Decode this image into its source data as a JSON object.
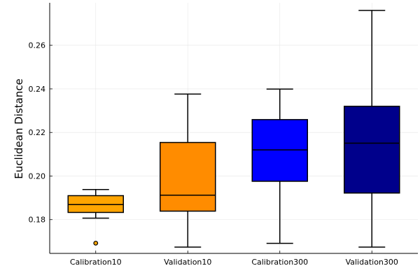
{
  "chart_data": {
    "type": "box",
    "ylabel": "Euclidean Distance",
    "xlabel": "",
    "title": "",
    "ylim": [
      0.1645,
      0.2795
    ],
    "y_ticks": [
      0.18,
      0.2,
      0.22,
      0.24,
      0.26
    ],
    "y_tick_labels": [
      "0.18",
      "0.20",
      "0.22",
      "0.24",
      "0.26"
    ],
    "grid": true,
    "legend": "none",
    "categories": [
      "Calibration10",
      "Validation10",
      "Calibration300",
      "Validation300"
    ],
    "boxes": [
      {
        "category": "Calibration10",
        "whisker_low": 0.1807,
        "q1": 0.1833,
        "median": 0.1869,
        "q3": 0.191,
        "whisker_high": 0.1938,
        "outliers": [
          0.1692
        ],
        "color": "#FFA500"
      },
      {
        "category": "Validation10",
        "whisker_low": 0.1674,
        "q1": 0.1839,
        "median": 0.1912,
        "q3": 0.2154,
        "whisker_high": 0.2376,
        "outliers": [],
        "color": "#FF8C00"
      },
      {
        "category": "Calibration300",
        "whisker_low": 0.1691,
        "q1": 0.1976,
        "median": 0.212,
        "q3": 0.2259,
        "whisker_high": 0.2399,
        "outliers": [],
        "color": "#0000FF"
      },
      {
        "category": "Validation300",
        "whisker_low": 0.1674,
        "q1": 0.1922,
        "median": 0.2151,
        "q3": 0.232,
        "whisker_high": 0.276,
        "outliers": [],
        "color": "#00008B"
      }
    ]
  }
}
